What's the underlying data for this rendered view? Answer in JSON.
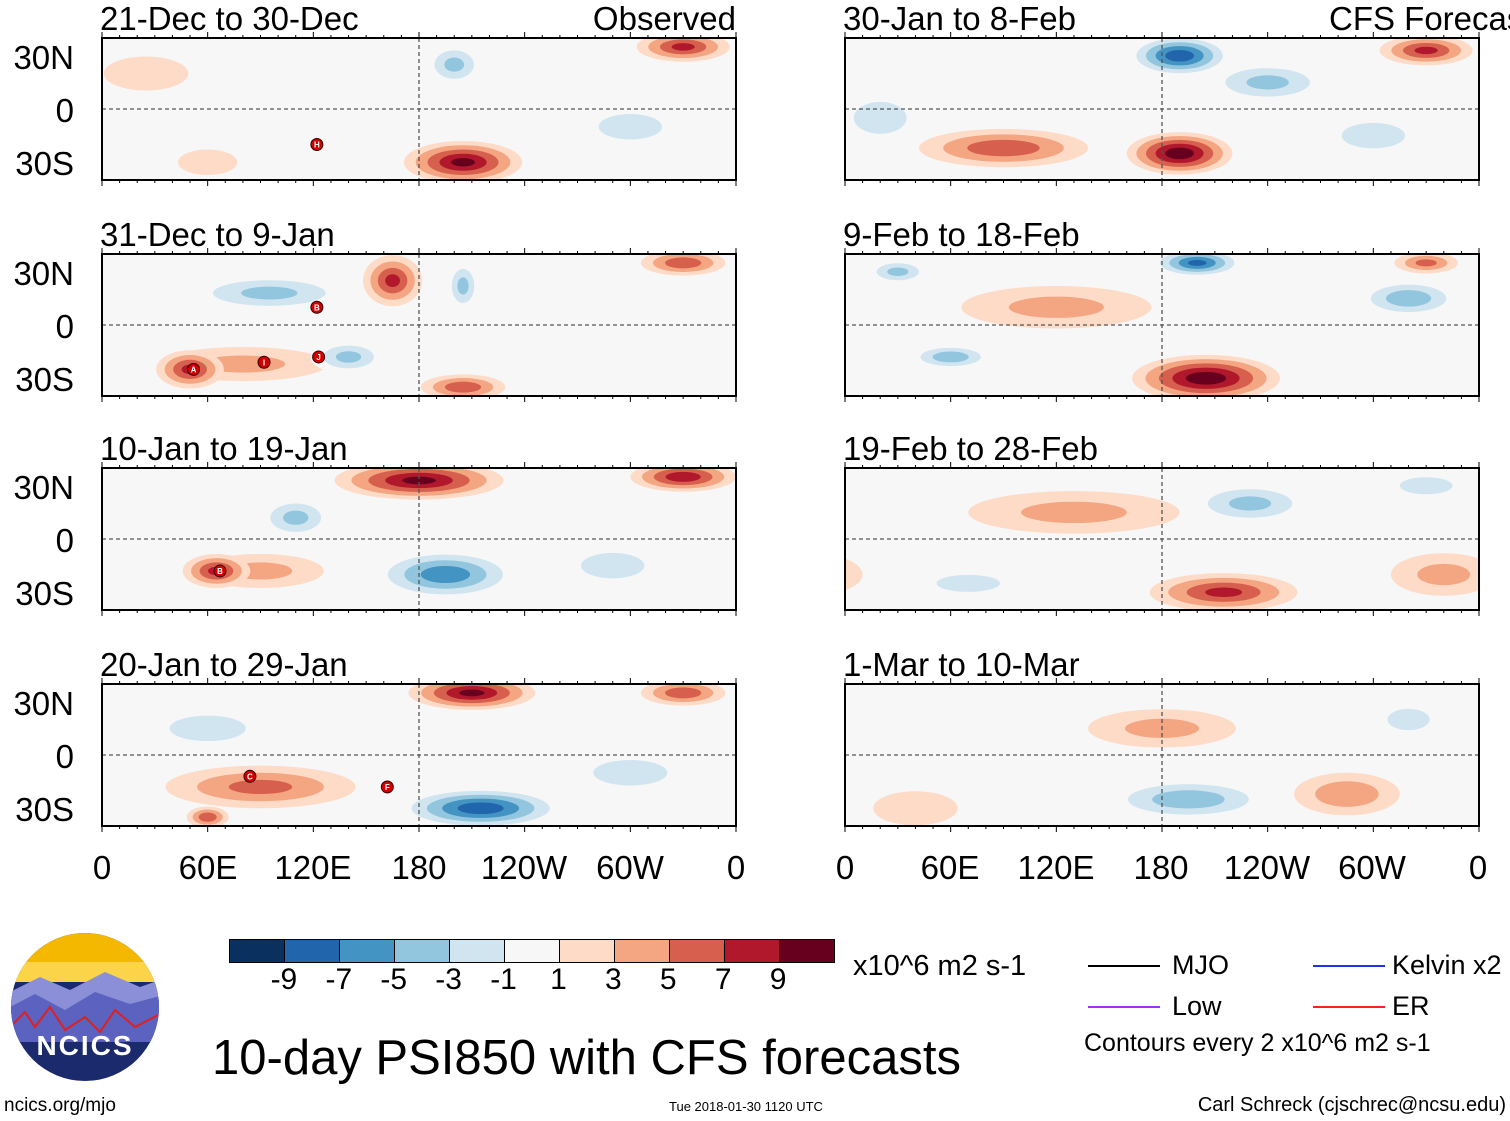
{
  "header": {
    "observed_label": "Observed",
    "forecast_label": "CFS Forecast"
  },
  "y_ticks": [
    "30N",
    "0",
    "30S"
  ],
  "x_ticks": [
    "0",
    "60E",
    "120E",
    "180",
    "120W",
    "60W",
    "0"
  ],
  "colorbar": {
    "labels": [
      "-9",
      "-7",
      "-5",
      "-3",
      "-1",
      "1",
      "3",
      "5",
      "7",
      "9"
    ],
    "colors": [
      "#0a3060",
      "#2166ac",
      "#4393c3",
      "#92c5de",
      "#d1e5f0",
      "#f7f7f7",
      "#fddbc7",
      "#f4a582",
      "#d6604d",
      "#b2182b",
      "#67001f"
    ],
    "units": "x10^6 m2 s-1"
  },
  "legend": {
    "items": [
      {
        "label": "MJO",
        "color": "#000000"
      },
      {
        "label": "Kelvin x2",
        "color": "#2030ff"
      },
      {
        "label": "Low",
        "color": "#a030ff"
      },
      {
        "label": "ER",
        "color": "#ff2020"
      }
    ],
    "contours_note": "Contours every 2 x10^6 m2 s-1"
  },
  "title": "10-day PSI850 with CFS forecasts",
  "logo_text": "NCICS",
  "footer": {
    "site": "ncics.org/mjo",
    "timestamp": "Tue 2018-01-30 1120 UTC",
    "author": "Carl Schreck (cjschrec@ncsu.edu)"
  },
  "chart_data": {
    "type": "heatmap",
    "variable": "PSI850 anomaly",
    "lon_range": [
      0,
      360
    ],
    "lat_range": [
      -40,
      40
    ],
    "panels": [
      {
        "title": "21-Dec to 30-Dec",
        "col": "left",
        "storms": [
          {
            "label": "H",
            "lon": 122,
            "lat": -20
          }
        ],
        "features": [
          [
            205,
            -30,
            9,
            28,
            10
          ],
          [
            200,
            25,
            -5,
            14,
            10
          ],
          [
            330,
            35,
            7,
            22,
            7
          ],
          [
            300,
            -10,
            -3,
            30,
            12
          ],
          [
            90,
            -15,
            -2,
            40,
            10
          ],
          [
            25,
            20,
            2,
            20,
            8
          ],
          [
            60,
            -30,
            2,
            14,
            6
          ],
          [
            260,
            10,
            -2,
            30,
            10
          ]
        ]
      },
      {
        "title": "31-Dec to 9-Jan",
        "col": "left",
        "storms": [
          {
            "label": "A",
            "lon": 52,
            "lat": -25
          },
          {
            "label": "I",
            "lon": 92,
            "lat": -21
          },
          {
            "label": "B",
            "lon": 122,
            "lat": 10
          },
          {
            "label": "J",
            "lon": 123,
            "lat": -18
          }
        ],
        "features": [
          [
            165,
            25,
            7,
            14,
            12
          ],
          [
            205,
            22,
            -5,
            8,
            12
          ],
          [
            330,
            35,
            6,
            20,
            6
          ],
          [
            50,
            -25,
            7,
            16,
            9
          ],
          [
            95,
            18,
            -5,
            40,
            9
          ],
          [
            140,
            -18,
            -5,
            18,
            8
          ],
          [
            205,
            -35,
            6,
            20,
            6
          ],
          [
            80,
            -22,
            3,
            40,
            8
          ],
          [
            310,
            -10,
            -2,
            30,
            10
          ]
        ]
      },
      {
        "title": "10-Jan to 19-Jan",
        "col": "left",
        "storms": [
          {
            "label": "B",
            "lon": 67,
            "lat": -18
          }
        ],
        "features": [
          [
            180,
            33,
            9,
            40,
            9
          ],
          [
            330,
            35,
            8,
            25,
            7
          ],
          [
            195,
            -20,
            -8,
            35,
            12
          ],
          [
            65,
            -18,
            7,
            16,
            8
          ],
          [
            110,
            12,
            -5,
            18,
            10
          ],
          [
            90,
            -18,
            3,
            30,
            8
          ],
          [
            290,
            -15,
            -3,
            30,
            12
          ],
          [
            30,
            -15,
            -2,
            20,
            12
          ]
        ]
      },
      {
        "title": "20-Jan to 29-Jan",
        "col": "left",
        "storms": [
          {
            "label": "C",
            "lon": 84,
            "lat": -12
          },
          {
            "label": "F",
            "lon": 162,
            "lat": -18
          }
        ],
        "features": [
          [
            210,
            35,
            9,
            30,
            8
          ],
          [
            330,
            35,
            6,
            20,
            6
          ],
          [
            215,
            -30,
            -10,
            40,
            10
          ],
          [
            90,
            -18,
            5,
            45,
            10
          ],
          [
            60,
            15,
            -4,
            30,
            10
          ],
          [
            60,
            -35,
            6,
            10,
            5
          ],
          [
            300,
            -10,
            -3,
            35,
            12
          ],
          [
            150,
            10,
            -2,
            30,
            8
          ]
        ]
      },
      {
        "title": "30-Jan to 8-Feb",
        "col": "right",
        "storms": [],
        "features": [
          [
            190,
            30,
            -10,
            25,
            10
          ],
          [
            190,
            -25,
            10,
            25,
            10
          ],
          [
            90,
            -22,
            6,
            40,
            9
          ],
          [
            330,
            33,
            7,
            22,
            7
          ],
          [
            300,
            -15,
            -3,
            30,
            12
          ],
          [
            20,
            -5,
            -3,
            25,
            15
          ],
          [
            240,
            15,
            -5,
            30,
            10
          ]
        ]
      },
      {
        "title": "9-Feb to 18-Feb",
        "col": "right",
        "storms": [],
        "features": [
          [
            200,
            35,
            -9,
            22,
            7
          ],
          [
            205,
            -30,
            10,
            35,
            11
          ],
          [
            320,
            15,
            -6,
            25,
            9
          ],
          [
            60,
            -18,
            -6,
            20,
            6
          ],
          [
            120,
            10,
            3,
            45,
            10
          ],
          [
            30,
            30,
            -5,
            15,
            6
          ],
          [
            330,
            35,
            5,
            15,
            5
          ]
        ]
      },
      {
        "title": "19-Feb to 28-Feb",
        "col": "right",
        "storms": [],
        "features": [
          [
            230,
            20,
            -5,
            30,
            10
          ],
          [
            215,
            -30,
            7,
            35,
            9
          ],
          [
            340,
            -20,
            3,
            25,
            10
          ],
          [
            70,
            -25,
            -3,
            30,
            8
          ],
          [
            130,
            15,
            3,
            50,
            10
          ],
          [
            330,
            30,
            -3,
            25,
            8
          ]
        ]
      },
      {
        "title": "1-Mar to 10-Mar",
        "col": "right",
        "storms": [],
        "features": [
          [
            195,
            -25,
            -6,
            40,
            10
          ],
          [
            285,
            -22,
            4,
            25,
            10
          ],
          [
            180,
            15,
            3,
            35,
            9
          ],
          [
            320,
            20,
            -3,
            20,
            10
          ],
          [
            140,
            -10,
            -2,
            40,
            8
          ],
          [
            40,
            -30,
            2,
            20,
            8
          ]
        ]
      }
    ]
  }
}
